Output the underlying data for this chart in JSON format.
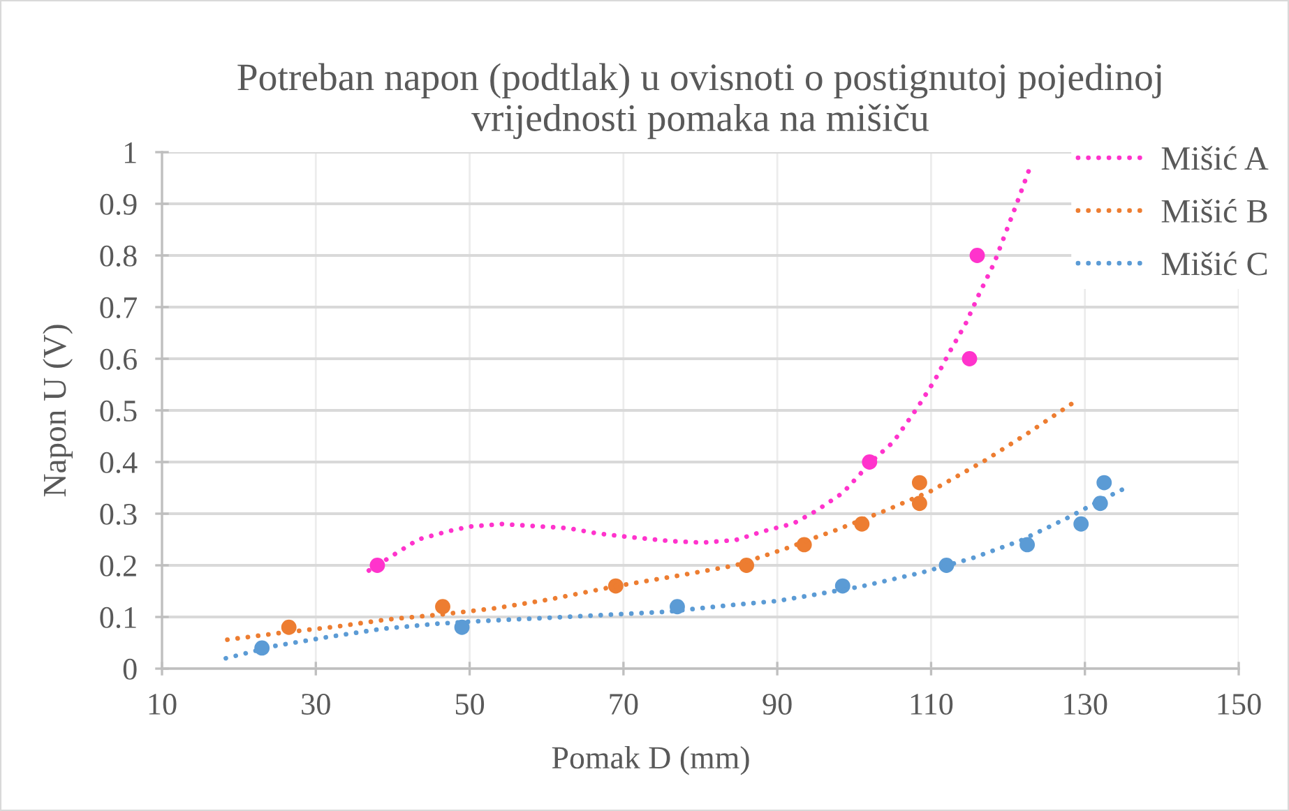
{
  "chart_data": {
    "type": "scatter",
    "title": "Potreban napon (podtlak) u ovisnoti o postignutoj pojedinoj\nvrijednosti pomaka na mišiču",
    "xlabel": "Pomak D (mm)",
    "ylabel": "Napon U (V)",
    "xlim": [
      10,
      150
    ],
    "xticks": [
      10,
      30,
      50,
      70,
      90,
      110,
      130,
      150
    ],
    "ylim": [
      0,
      1
    ],
    "yticks": [
      0,
      0.1,
      0.2,
      0.3,
      0.4,
      0.5,
      0.6,
      0.7,
      0.8,
      0.9,
      1
    ],
    "grid": true,
    "legend": "top right",
    "series": [
      {
        "color": "#ff33cc",
        "marker": "circle",
        "x": [
          38,
          102,
          115,
          116
        ],
        "values": [
          0.2,
          0.4,
          0.6,
          0.8
        ]
      },
      {
        "color": "#ed7d31",
        "marker": "circle",
        "x": [
          26.5,
          46.5,
          69,
          86,
          93.5,
          101,
          108.5,
          108.5
        ],
        "values": [
          0.08,
          0.12,
          0.16,
          0.2,
          0.24,
          0.28,
          0.32,
          0.36
        ]
      },
      {
        "color": "#5b9bd5",
        "marker": "circle",
        "x": [
          23,
          49,
          77,
          98.5,
          112,
          122.5,
          129.5,
          132,
          132.5
        ],
        "values": [
          0.04,
          0.08,
          0.12,
          0.16,
          0.2,
          0.24,
          0.28,
          0.32,
          0.36
        ]
      },
      {
        "type": "line",
        "name": "Mišić A",
        "color": "#ff33cc",
        "line_style": "dotted",
        "marker": "none",
        "x": [
          36.9,
          40.1,
          43.3,
          47.2,
          50,
          54.2,
          58.4,
          62.8,
          66.5,
          70.6,
          76.1,
          80.3,
          84.6,
          88.2,
          92.1,
          95,
          98.5,
          102.4,
          105.1,
          108.3,
          110.5,
          112.4,
          114.5,
          116.3,
          118.2,
          119.7,
          121.2,
          122.7
        ],
        "values": [
          0.19,
          0.22,
          0.25,
          0.266,
          0.275,
          0.28,
          0.276,
          0.272,
          0.262,
          0.255,
          0.247,
          0.244,
          0.249,
          0.266,
          0.281,
          0.305,
          0.34,
          0.403,
          0.439,
          0.507,
          0.559,
          0.613,
          0.668,
          0.727,
          0.785,
          0.844,
          0.903,
          0.964
        ]
      },
      {
        "type": "line",
        "name": "Mišić B",
        "color": "#ed7d31",
        "line_style": "dotted",
        "marker": "none",
        "x": [
          18.5,
          25.3,
          32.5,
          39.2,
          46.4,
          53.4,
          60.4,
          68.8,
          77.9,
          84.6,
          91.8,
          94.2,
          97.6,
          103.9,
          110,
          117,
          122.7,
          128.3
        ],
        "values": [
          0.056,
          0.069,
          0.081,
          0.095,
          0.105,
          0.117,
          0.134,
          0.159,
          0.182,
          0.2,
          0.236,
          0.25,
          0.268,
          0.305,
          0.344,
          0.403,
          0.457,
          0.513
        ]
      },
      {
        "type": "line",
        "name": "Mišić C",
        "color": "#5b9bd5",
        "line_style": "dotted",
        "marker": "none",
        "x": [
          18.3,
          24.7,
          31.9,
          38.6,
          45.8,
          51.3,
          59.7,
          68.8,
          75.5,
          84,
          90,
          94.8,
          100.9,
          108.8,
          115.4,
          121.5,
          127.5,
          131.8,
          134.9
        ],
        "values": [
          0.02,
          0.044,
          0.062,
          0.077,
          0.087,
          0.092,
          0.098,
          0.105,
          0.11,
          0.123,
          0.131,
          0.143,
          0.159,
          0.186,
          0.214,
          0.247,
          0.29,
          0.324,
          0.347
        ]
      }
    ]
  }
}
